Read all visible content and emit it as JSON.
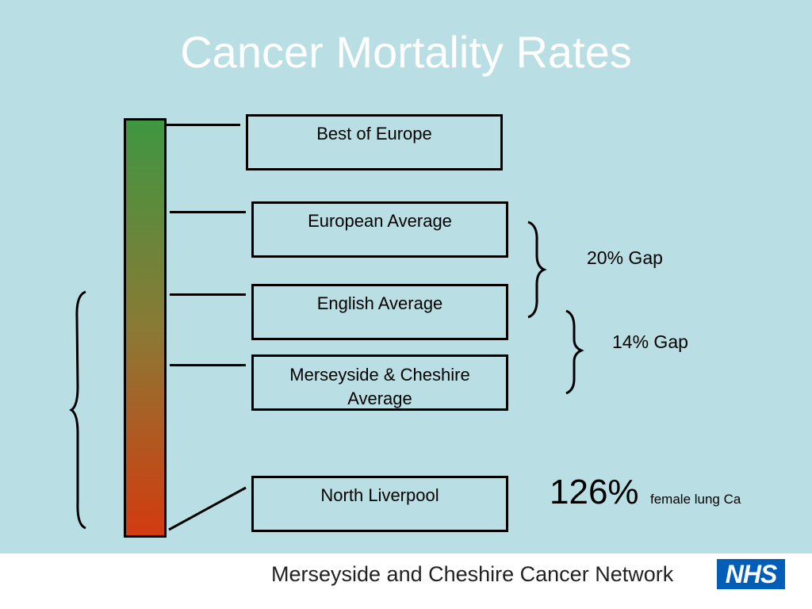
{
  "title": "Cancer Mortality Rates",
  "colors": {
    "background": "#b9dfe4",
    "bar_top": "#3f9641",
    "bar_bottom": "#d23b10",
    "nhs_blue": "#005eb8"
  },
  "boxes": [
    {
      "lines": [
        "Best of Europe"
      ]
    },
    {
      "lines": [
        "European Average"
      ]
    },
    {
      "lines": [
        "English Average"
      ]
    },
    {
      "lines": [
        "Merseyside & Cheshire",
        "Average"
      ]
    },
    {
      "lines": [
        "North Liverpool"
      ]
    }
  ],
  "gaps": [
    {
      "label": "20% Gap"
    },
    {
      "label": "14% Gap"
    }
  ],
  "highlight": {
    "value": "126%",
    "note": "female lung Ca"
  },
  "footer": {
    "network": "Merseyside and Cheshire Cancer Network",
    "logo": "NHS"
  }
}
